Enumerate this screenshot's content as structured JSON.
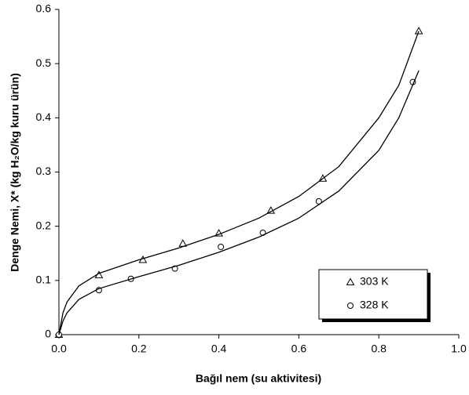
{
  "chart_data": {
    "type": "scatter",
    "xlabel": "Bağıl nem (su aktivitesi)",
    "ylabel": "Denge Nemi, X* (kg H₂O/kg kuru ürün)",
    "xlim": [
      0,
      1
    ],
    "ylim": [
      0,
      0.6
    ],
    "xticks": [
      {
        "value": 0,
        "label": "0.0"
      },
      0.2,
      0.4,
      0.6,
      0.8,
      {
        "value": 1,
        "label": "1.0"
      }
    ],
    "yticks": [
      0,
      0.1,
      0.2,
      0.3,
      0.4,
      0.5,
      0.6
    ],
    "grid": false,
    "legend": "lower right",
    "series": [
      {
        "name": "303 K",
        "marker": "triangle",
        "color": "#000000",
        "x": [
          0,
          0.1,
          0.21,
          0.31,
          0.4,
          0.53,
          0.66,
          0.9
        ],
        "values": [
          0,
          0.11,
          0.138,
          0.168,
          0.187,
          0.229,
          0.288,
          0.56
        ]
      },
      {
        "name": "328 K",
        "marker": "circle",
        "color": "#000000",
        "x": [
          0,
          0.1,
          0.18,
          0.29,
          0.405,
          0.51,
          0.65,
          0.885
        ],
        "values": [
          0,
          0.082,
          0.103,
          0.122,
          0.162,
          0.188,
          0.246,
          0.466
        ]
      },
      {
        "marker": "line",
        "color": "#000000",
        "x": [
          0,
          0.01,
          0.02,
          0.05,
          0.1,
          0.2,
          0.3,
          0.4,
          0.5,
          0.6,
          0.7,
          0.8,
          0.85,
          0.9
        ],
        "values": [
          0,
          0.04,
          0.06,
          0.09,
          0.113,
          0.138,
          0.16,
          0.185,
          0.215,
          0.255,
          0.31,
          0.4,
          0.46,
          0.56
        ]
      },
      {
        "marker": "line",
        "color": "#000000",
        "x": [
          0,
          0.01,
          0.02,
          0.05,
          0.1,
          0.2,
          0.3,
          0.4,
          0.5,
          0.6,
          0.7,
          0.8,
          0.85,
          0.9
        ],
        "values": [
          0,
          0.025,
          0.04,
          0.065,
          0.085,
          0.107,
          0.128,
          0.152,
          0.18,
          0.215,
          0.265,
          0.34,
          0.4,
          0.487
        ]
      }
    ]
  }
}
